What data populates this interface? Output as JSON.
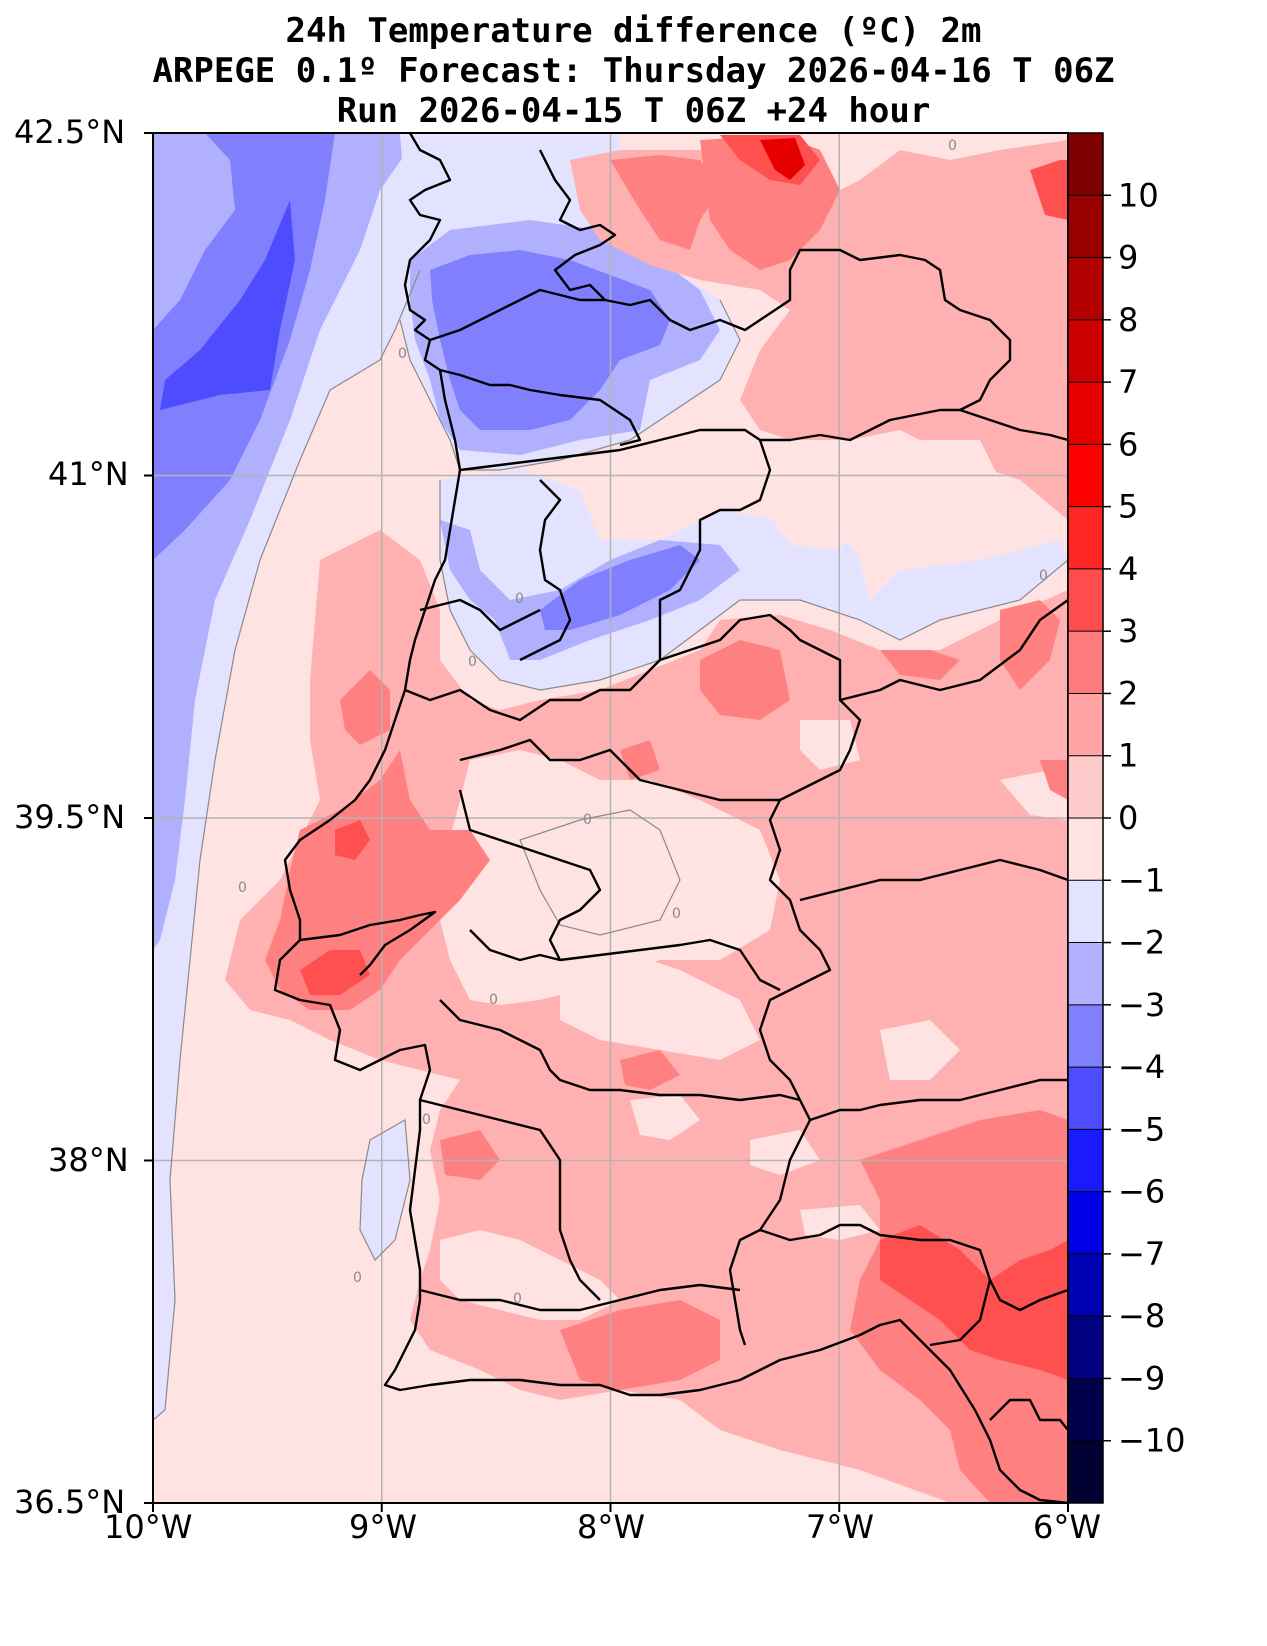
{
  "title": {
    "line1": "24h Temperature difference (ºC) 2m",
    "line2": "ARPEGE 0.1º Forecast: Thursday 2026-04-16 T 06Z",
    "line3": "Run 2026-04-15 T 06Z +24 hour"
  },
  "map": {
    "lon_range": [
      -10,
      -6
    ],
    "lat_range": [
      36.5,
      42.5
    ],
    "lon_ticks": [
      {
        "value": -10,
        "label": "10°W"
      },
      {
        "value": -9,
        "label": "9°W"
      },
      {
        "value": -8,
        "label": "8°W"
      },
      {
        "value": -7,
        "label": "7°W"
      },
      {
        "value": -6,
        "label": "6°W"
      }
    ],
    "lat_ticks": [
      {
        "value": 42.5,
        "label": "42.5°N"
      },
      {
        "value": 41,
        "label": "41°N"
      },
      {
        "value": 39.5,
        "label": "39.5°N"
      },
      {
        "value": 38,
        "label": "38°N"
      },
      {
        "value": 36.5,
        "label": "36.5°N"
      }
    ],
    "zero_contour_label": "0",
    "grid": true
  },
  "colorbar": {
    "levels": [
      10,
      9,
      8,
      7,
      6,
      5,
      4,
      3,
      2,
      1,
      0,
      -1,
      -2,
      -3,
      -4,
      -5,
      -6,
      -7,
      -8,
      -9,
      -10
    ],
    "labels": [
      "10",
      "9",
      "8",
      "7",
      "6",
      "5",
      "4",
      "3",
      "2",
      "1",
      "0",
      "−1",
      "−2",
      "−3",
      "−4",
      "−5",
      "−6",
      "−7",
      "−8",
      "−9",
      "−10"
    ],
    "colors_top_to_bottom": [
      "#7f0000",
      "#990000",
      "#b30000",
      "#cc0000",
      "#e60000",
      "#ff0000",
      "#ff2626",
      "#ff4d4d",
      "#ff7a7a",
      "#ffa3a3",
      "#ffcccc",
      "#ffe3e3",
      "#e3e3ff",
      "#b0b0ff",
      "#8080ff",
      "#4d4dff",
      "#1a1aff",
      "#0000e6",
      "#0000b3",
      "#000080",
      "#00004d",
      "#000033"
    ]
  },
  "colors": {
    "ocean_base": "#ffe3e3",
    "cool_1": "#e3e3ff",
    "cool_2": "#b0b0ff",
    "cool_3": "#8080ff",
    "cool_4": "#4d4dff",
    "warm_1": "#ffb1b1",
    "warm_2": "#ff8080",
    "warm_3": "#ff5050",
    "hot": "#e60000",
    "hottest": "#990000",
    "border": "#000000",
    "grid": "#b3b3b3"
  }
}
